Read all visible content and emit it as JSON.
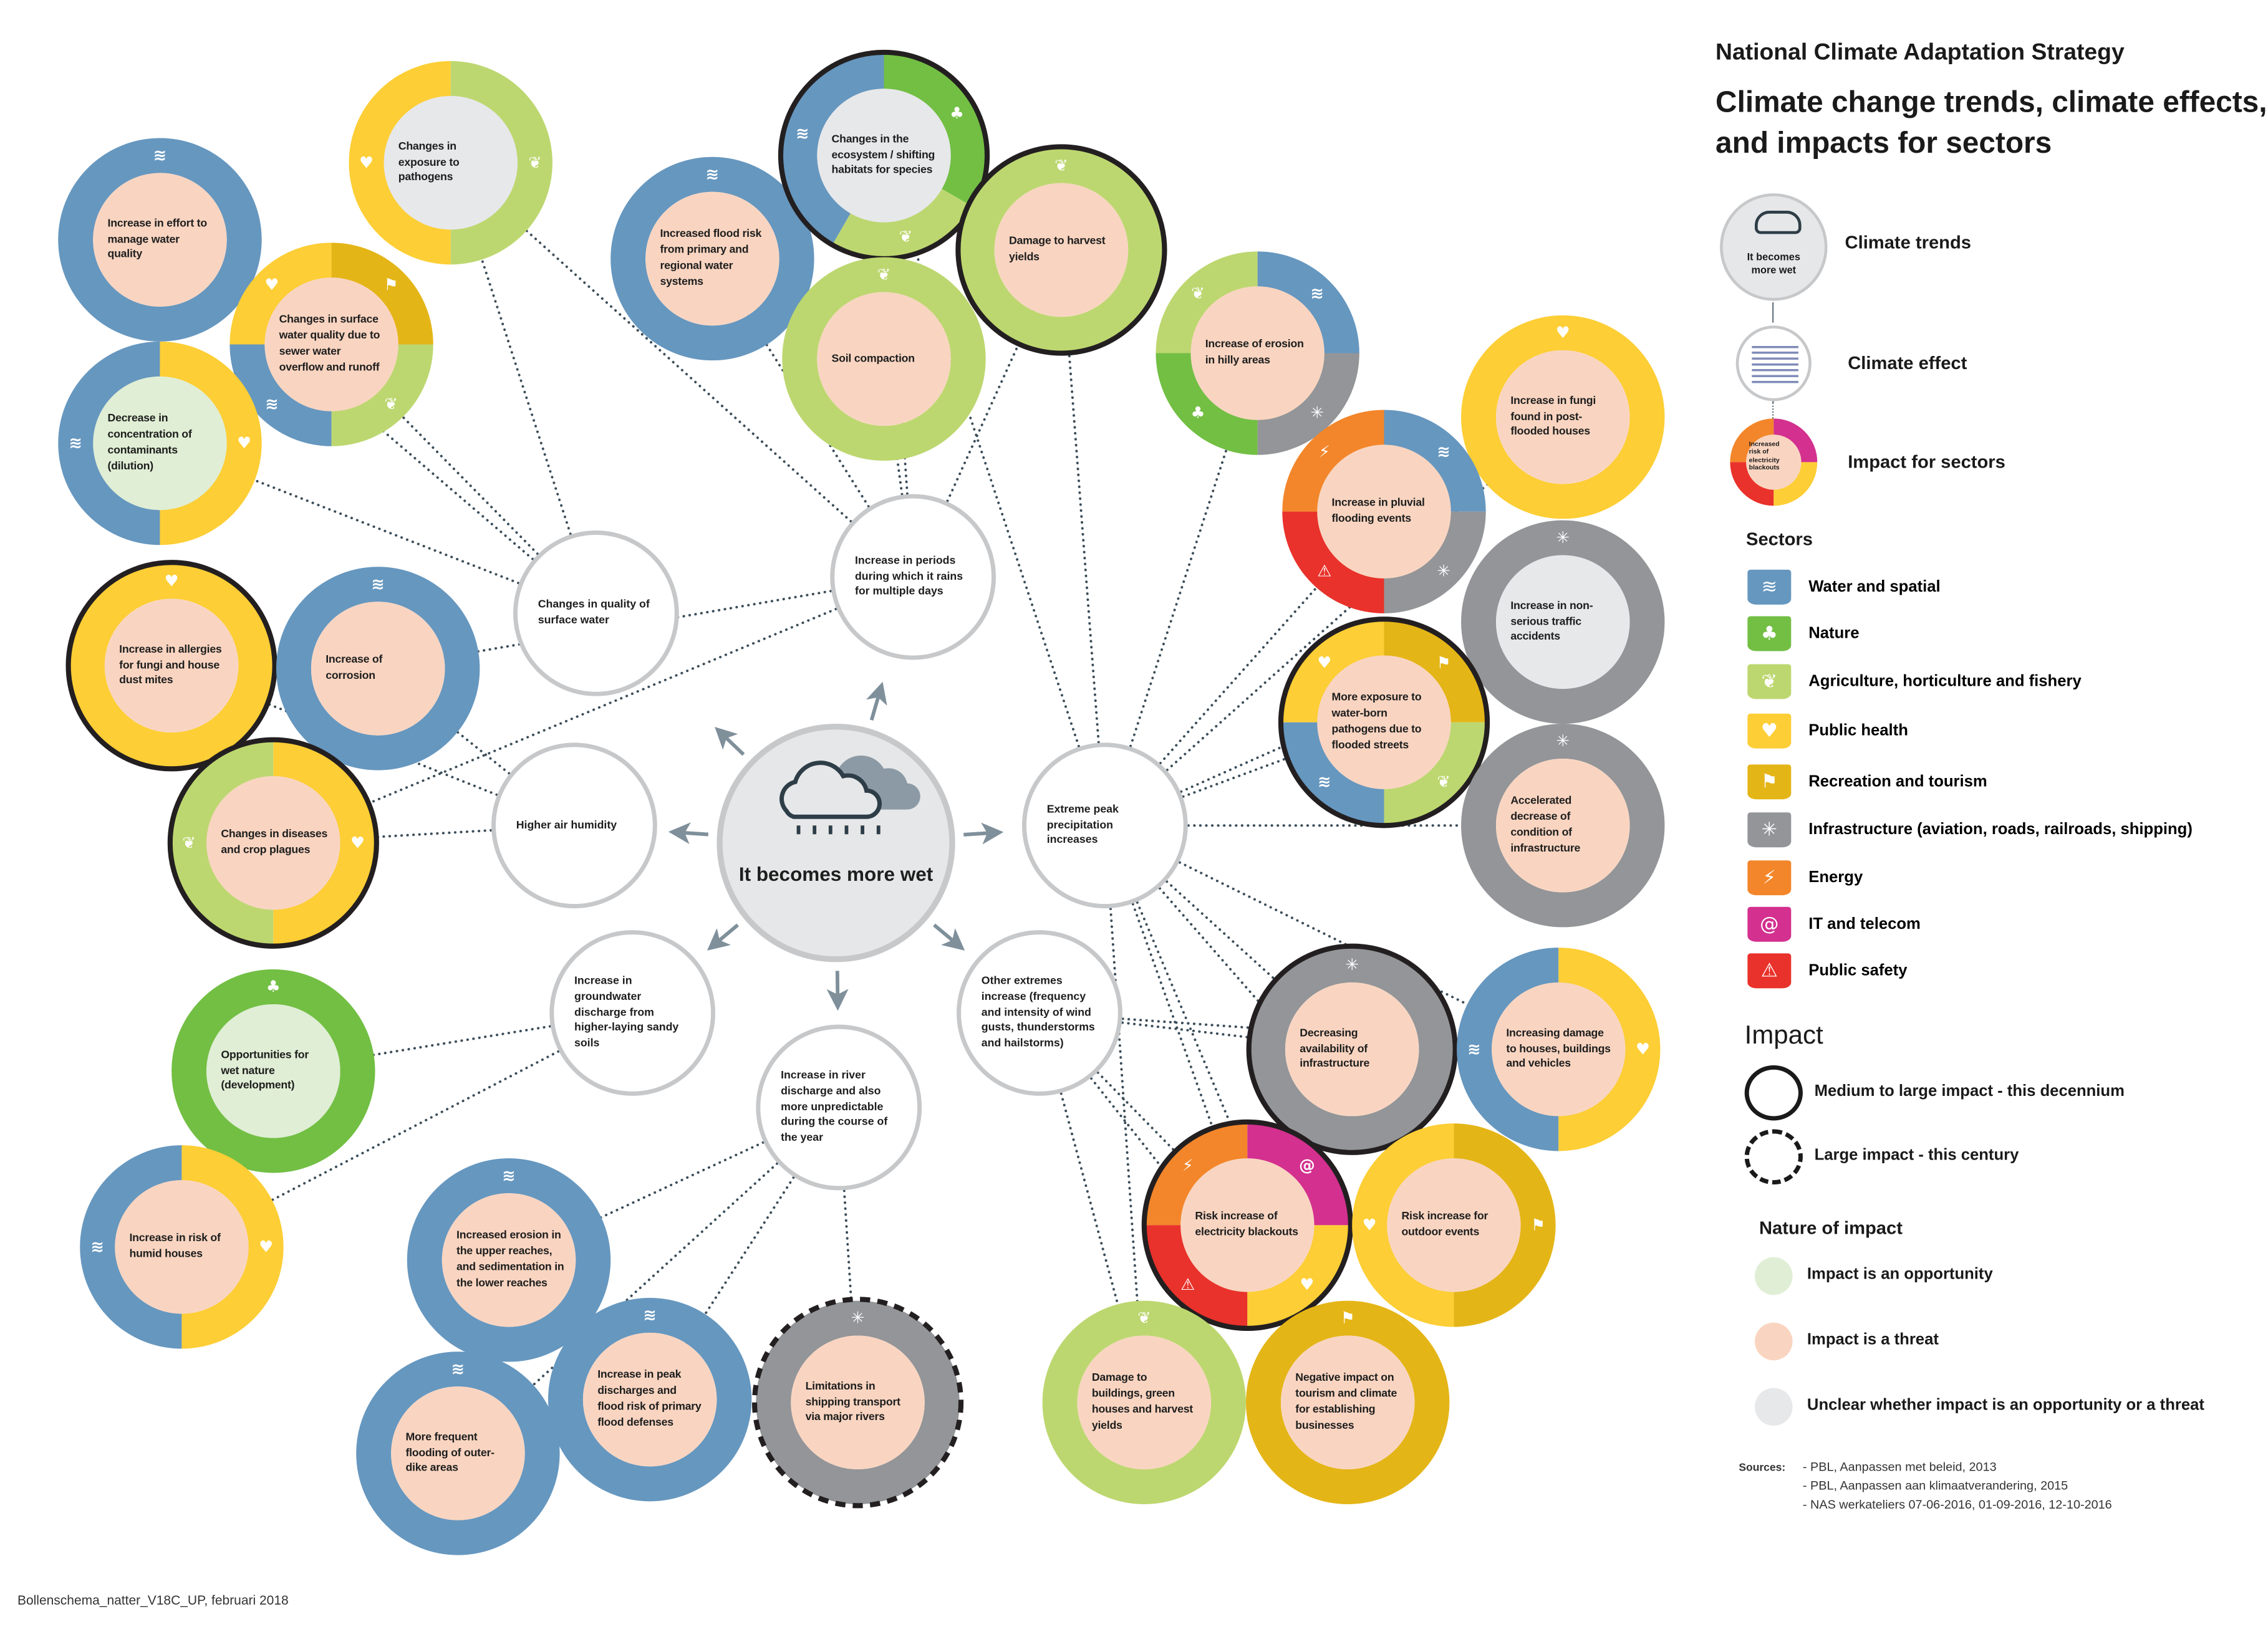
{
  "legend": {
    "title": "National Climate Adaptation Strategy",
    "subtitle": "Climate change trends, climate effects, and impacts for sectors",
    "keys": {
      "trend": "Climate trends",
      "effect": "Climate effect",
      "impact": "Impact for sectors",
      "trend_sample": "It becomes more wet",
      "impact_sample": "Increased risk of electricity blackouts"
    },
    "sectors_heading": "Sectors",
    "sectors": [
      {
        "id": "water",
        "label": "Water and spatial",
        "color": "#6697bf",
        "icon": "water-icon",
        "glyph": "≋"
      },
      {
        "id": "nature",
        "label": "Nature",
        "color": "#72bf44",
        "icon": "tree-icon",
        "glyph": "♣"
      },
      {
        "id": "agri",
        "label": "Agriculture, horticulture and fishery",
        "color": "#bdd770",
        "icon": "wheat-fish-icon",
        "glyph": "❦"
      },
      {
        "id": "health",
        "label": "Public health",
        "color": "#fdce35",
        "icon": "heart-icon",
        "glyph": "♥"
      },
      {
        "id": "recreation",
        "label": "Recreation and tourism",
        "color": "#e4b517",
        "icon": "runner-icon",
        "glyph": "⚑"
      },
      {
        "id": "infra",
        "label": "Infrastructure (aviation, roads, railroads, shipping)",
        "color": "#939598",
        "icon": "infrastructure-icon",
        "glyph": "✳"
      },
      {
        "id": "energy",
        "label": "Energy",
        "color": "#f3862a",
        "icon": "lightning-icon",
        "glyph": "⚡"
      },
      {
        "id": "it",
        "label": "IT and telecom",
        "color": "#d3308f",
        "icon": "at-sign-icon",
        "glyph": "@"
      },
      {
        "id": "safety",
        "label": "Public safety",
        "color": "#e9322b",
        "icon": "warning-icon",
        "glyph": "⚠"
      }
    ],
    "impact_heading": "Impact",
    "impact_levels": {
      "medium": "Medium to large impact - this decennium",
      "large": "Large impact - this century"
    },
    "nature_heading": "Nature of impact",
    "nature": {
      "opportunity": {
        "label": "Impact is an opportunity",
        "color": "#e0eed5"
      },
      "threat": {
        "label": "Impact is a threat",
        "color": "#f9d5c1"
      },
      "unclear": {
        "label": "Unclear whether impact is an opportunity or a threat",
        "color": "#e7e8ea"
      }
    },
    "sources_label": "Sources:",
    "sources": [
      "- PBL, Aanpassen met beleid, 2013",
      "- PBL, Aanpassen aan klimaatverandering, 2015",
      "- NAS werkateliers 07-06-2016, 01-09-2016, 12-10-2016"
    ]
  },
  "trend": {
    "label": "It becomes more wet"
  },
  "effects": [
    {
      "text": "Changes in quality of surface water"
    },
    {
      "text": "Increase in periods during which it rains for multiple days"
    },
    {
      "text": "Higher air humidity"
    },
    {
      "text": "Extreme peak precipitation increases"
    },
    {
      "text": "Increase in groundwater discharge from higher-laying sandy soils"
    },
    {
      "text": "Increase in river discharge and also more unpredictable during the course of the year"
    },
    {
      "text": "Other extremes increase (frequency and intensity of wind gusts, thunderstorms and hailstorms)"
    }
  ],
  "impacts": [
    {
      "text": "Increase in effort to manage water quality",
      "sectors": [
        "water"
      ],
      "nature": "threat",
      "impact": null
    },
    {
      "text": "Changes in exposure to pathogens",
      "sectors": [
        "health",
        "agri"
      ],
      "nature": "unclear",
      "impact": null
    },
    {
      "text": "Changes in surface water quality due to sewer water overflow and runoff",
      "sectors": [
        "health",
        "recreation",
        "water",
        "agri"
      ],
      "nature": "threat",
      "impact": null
    },
    {
      "text": "Decrease in concentration of contaminants (dilution)",
      "sectors": [
        "water",
        "health"
      ],
      "nature": "opportunity",
      "impact": null
    },
    {
      "text": "Increase in allergies for fungi and house dust mites",
      "sectors": [
        "health"
      ],
      "nature": "threat",
      "impact": "medium"
    },
    {
      "text": "Increase of corrosion",
      "sectors": [
        "water"
      ],
      "nature": "threat",
      "impact": null
    },
    {
      "text": "Changes in diseases and crop plagues",
      "sectors": [
        "agri",
        "health"
      ],
      "nature": "threat",
      "impact": "medium"
    },
    {
      "text": "Opportunities for wet nature (development)",
      "sectors": [
        "nature"
      ],
      "nature": "opportunity",
      "impact": null
    },
    {
      "text": "Increase in risk of humid houses",
      "sectors": [
        "water",
        "health"
      ],
      "nature": "threat",
      "impact": null
    },
    {
      "text": "Increased erosion in the upper reaches, and sedimentation in the lower reaches",
      "sectors": [
        "water"
      ],
      "nature": "threat",
      "impact": null
    },
    {
      "text": "More frequent flooding of outer-dike areas",
      "sectors": [
        "water"
      ],
      "nature": "threat",
      "impact": null
    },
    {
      "text": "Increase in peak discharges and flood risk of primary flood defenses",
      "sectors": [
        "water"
      ],
      "nature": "threat",
      "impact": null
    },
    {
      "text": "Limitations in shipping transport via major rivers",
      "sectors": [
        "infra"
      ],
      "nature": "threat",
      "impact": "large"
    },
    {
      "text": "Increased flood risk from primary and regional water systems",
      "sectors": [
        "water"
      ],
      "nature": "threat",
      "impact": null
    },
    {
      "text": "Changes in the ecosystem / shifting habitats for species",
      "sectors": [
        "water",
        "nature",
        "agri"
      ],
      "nature": "unclear",
      "impact": "medium"
    },
    {
      "text": "Soil compaction",
      "sectors": [
        "agri"
      ],
      "nature": "threat",
      "impact": null
    },
    {
      "text": "Damage to harvest yields",
      "sectors": [
        "agri"
      ],
      "nature": "threat",
      "impact": "medium"
    },
    {
      "text": "Increase of erosion in hilly areas",
      "sectors": [
        "agri",
        "water",
        "nature",
        "infra"
      ],
      "nature": "threat",
      "impact": null
    },
    {
      "text": "Increase in fungi found in post-flooded houses",
      "sectors": [
        "health"
      ],
      "nature": "threat",
      "impact": null
    },
    {
      "text": "Increase in pluvial flooding events",
      "sectors": [
        "energy",
        "water",
        "safety",
        "infra"
      ],
      "nature": "threat",
      "impact": null
    },
    {
      "text": "Increase in non-serious traffic accidents",
      "sectors": [
        "infra"
      ],
      "nature": "unclear",
      "impact": null
    },
    {
      "text": "More exposure to water-born pathogens due to flooded streets",
      "sectors": [
        "health",
        "recreation",
        "water",
        "agri"
      ],
      "nature": "threat",
      "impact": "medium"
    },
    {
      "text": "Accelerated decrease of condition of infrastructure",
      "sectors": [
        "infra"
      ],
      "nature": "threat",
      "impact": null
    },
    {
      "text": "Decreasing availability of infrastructure",
      "sectors": [
        "infra"
      ],
      "nature": "threat",
      "impact": "medium"
    },
    {
      "text": "Increasing damage to houses, buildings and vehicles",
      "sectors": [
        "water",
        "health"
      ],
      "nature": "threat",
      "impact": null
    },
    {
      "text": "Risk increase of electricity blackouts",
      "sectors": [
        "energy",
        "it",
        "safety",
        "health"
      ],
      "nature": "threat",
      "impact": "medium"
    },
    {
      "text": "Risk increase for outdoor events",
      "sectors": [
        "health",
        "recreation"
      ],
      "nature": "threat",
      "impact": null
    },
    {
      "text": "Damage to buildings, green houses and harvest yields",
      "sectors": [
        "agri"
      ],
      "nature": "threat",
      "impact": null
    },
    {
      "text": "Negative impact on tourism and climate for establishing businesses",
      "sectors": [
        "recreation"
      ],
      "nature": "threat",
      "impact": null
    }
  ],
  "links": [
    [
      0,
      0
    ],
    [
      0,
      1
    ],
    [
      0,
      2
    ],
    [
      0,
      3
    ],
    [
      1,
      13
    ],
    [
      1,
      14
    ],
    [
      1,
      15
    ],
    [
      1,
      16
    ],
    [
      1,
      5
    ],
    [
      1,
      6
    ],
    [
      1,
      1
    ],
    [
      2,
      4
    ],
    [
      2,
      5
    ],
    [
      2,
      6
    ],
    [
      3,
      14
    ],
    [
      3,
      16
    ],
    [
      3,
      17
    ],
    [
      3,
      18
    ],
    [
      3,
      19
    ],
    [
      3,
      20
    ],
    [
      3,
      21
    ],
    [
      3,
      22
    ],
    [
      3,
      23
    ],
    [
      3,
      24
    ],
    [
      3,
      25
    ],
    [
      3,
      26
    ],
    [
      3,
      27
    ],
    [
      3,
      28
    ],
    [
      4,
      7
    ],
    [
      4,
      8
    ],
    [
      5,
      9
    ],
    [
      5,
      10
    ],
    [
      5,
      11
    ],
    [
      5,
      12
    ],
    [
      6,
      23
    ],
    [
      6,
      24
    ],
    [
      6,
      25
    ],
    [
      6,
      27
    ],
    [
      6,
      28
    ]
  ],
  "footer": "Bollenschema_natter_V18C_UP, februari 2018"
}
